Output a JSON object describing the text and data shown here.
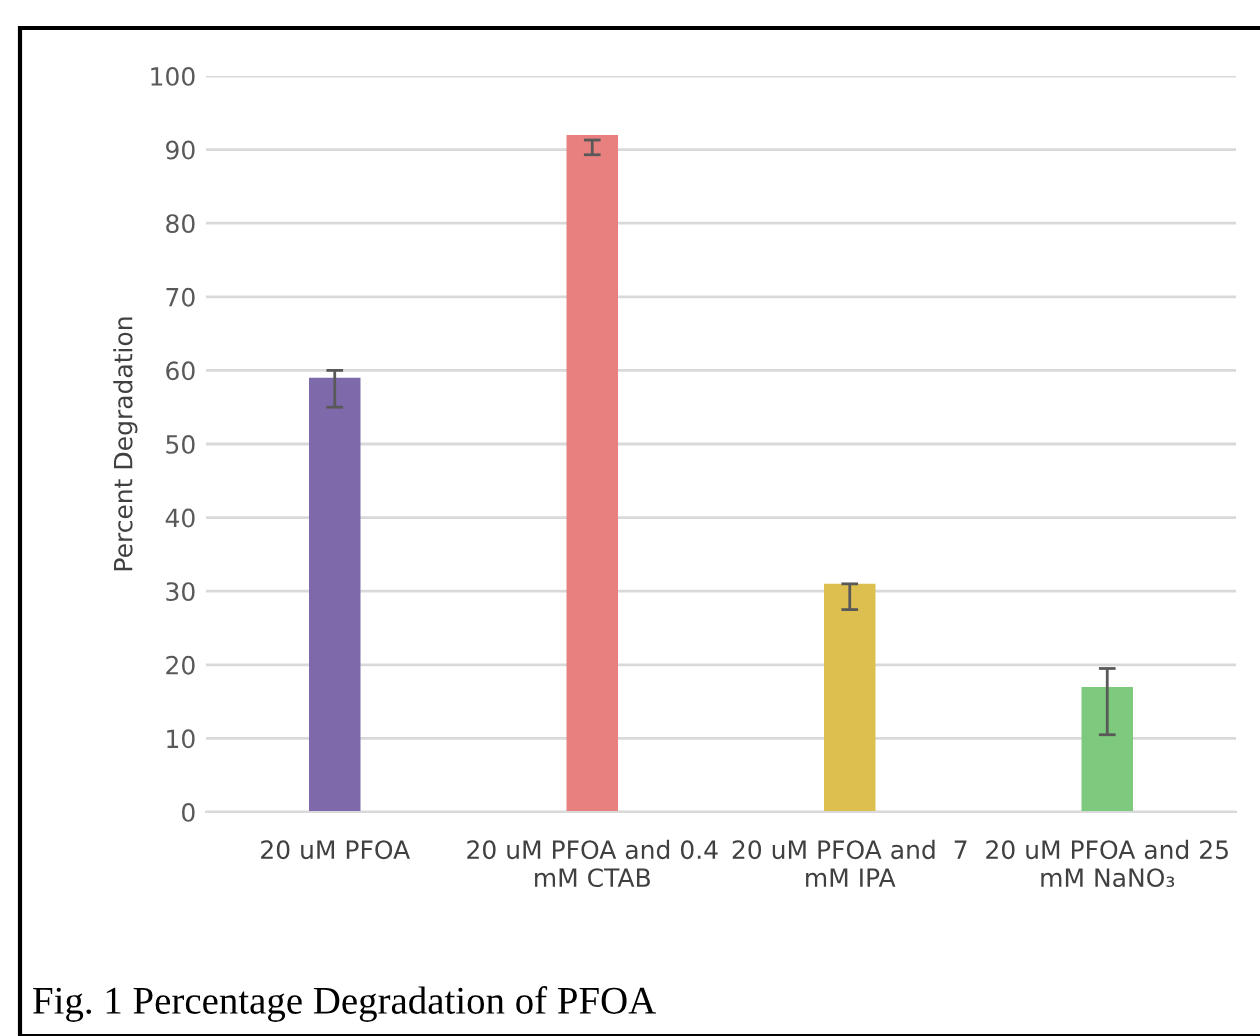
{
  "chart_data": {
    "type": "bar",
    "categories": [
      "20 uM PFOA",
      "20 uM PFOA and 0.4\nmM CTAB",
      "20 uM PFOA and  7\nmM IPA",
      "20 uM PFOA and 25\nmM NaNO₃"
    ],
    "values": [
      59,
      92,
      31,
      17
    ],
    "colors": [
      "#7e69ab",
      "#e88080",
      "#ddbf50",
      "#7dc97d"
    ],
    "errors": [
      [
        55,
        60
      ],
      [
        89.3,
        91.3
      ],
      [
        27.5,
        31
      ],
      [
        10.5,
        19.5
      ]
    ],
    "ylabel": "Percent Degradation",
    "ylim": [
      0,
      100
    ],
    "yticks": [
      0,
      10,
      20,
      30,
      40,
      50,
      60,
      70,
      80,
      90,
      100
    ],
    "grid": "y",
    "annotations": [
      "Fig. 1 Percentage Degradation of PFOA"
    ]
  }
}
